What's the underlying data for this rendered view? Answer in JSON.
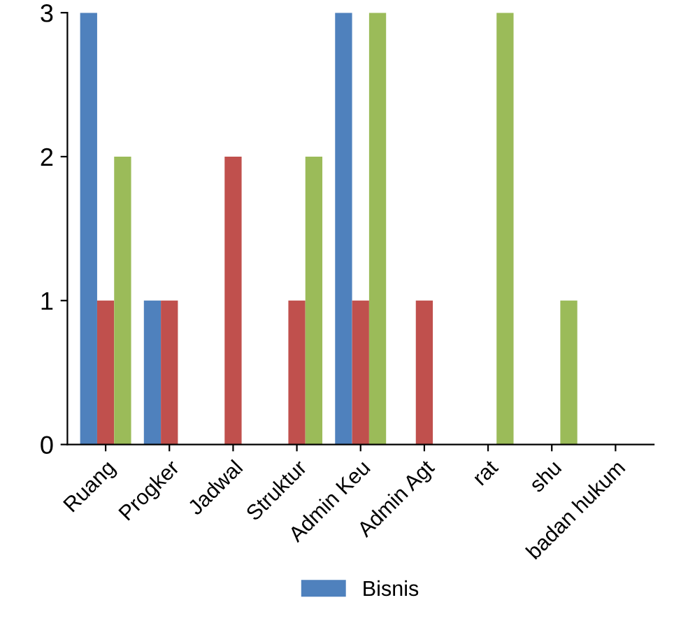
{
  "chart_data": {
    "type": "bar",
    "categories": [
      "Ruang",
      "Progker",
      "Jadwal",
      "Struktur",
      "Admin Keu",
      "Admin Agt",
      "rat",
      "shu",
      "badan hukum"
    ],
    "series": [
      {
        "name": "Bisnis",
        "color": "#4f81bd",
        "values": [
          3,
          1,
          0,
          0,
          3,
          0,
          0,
          0,
          0
        ]
      },
      {
        "color": "#c0504d",
        "values": [
          1,
          1,
          2,
          1,
          1,
          1,
          0,
          0,
          0
        ]
      },
      {
        "color": "#9bbb59",
        "values": [
          2,
          0,
          0,
          2,
          3,
          0,
          3,
          1,
          0
        ]
      }
    ],
    "ylim": [
      0,
      3
    ],
    "yticks": [
      0,
      1,
      2,
      3
    ],
    "grid": false,
    "legend": "bottom"
  }
}
